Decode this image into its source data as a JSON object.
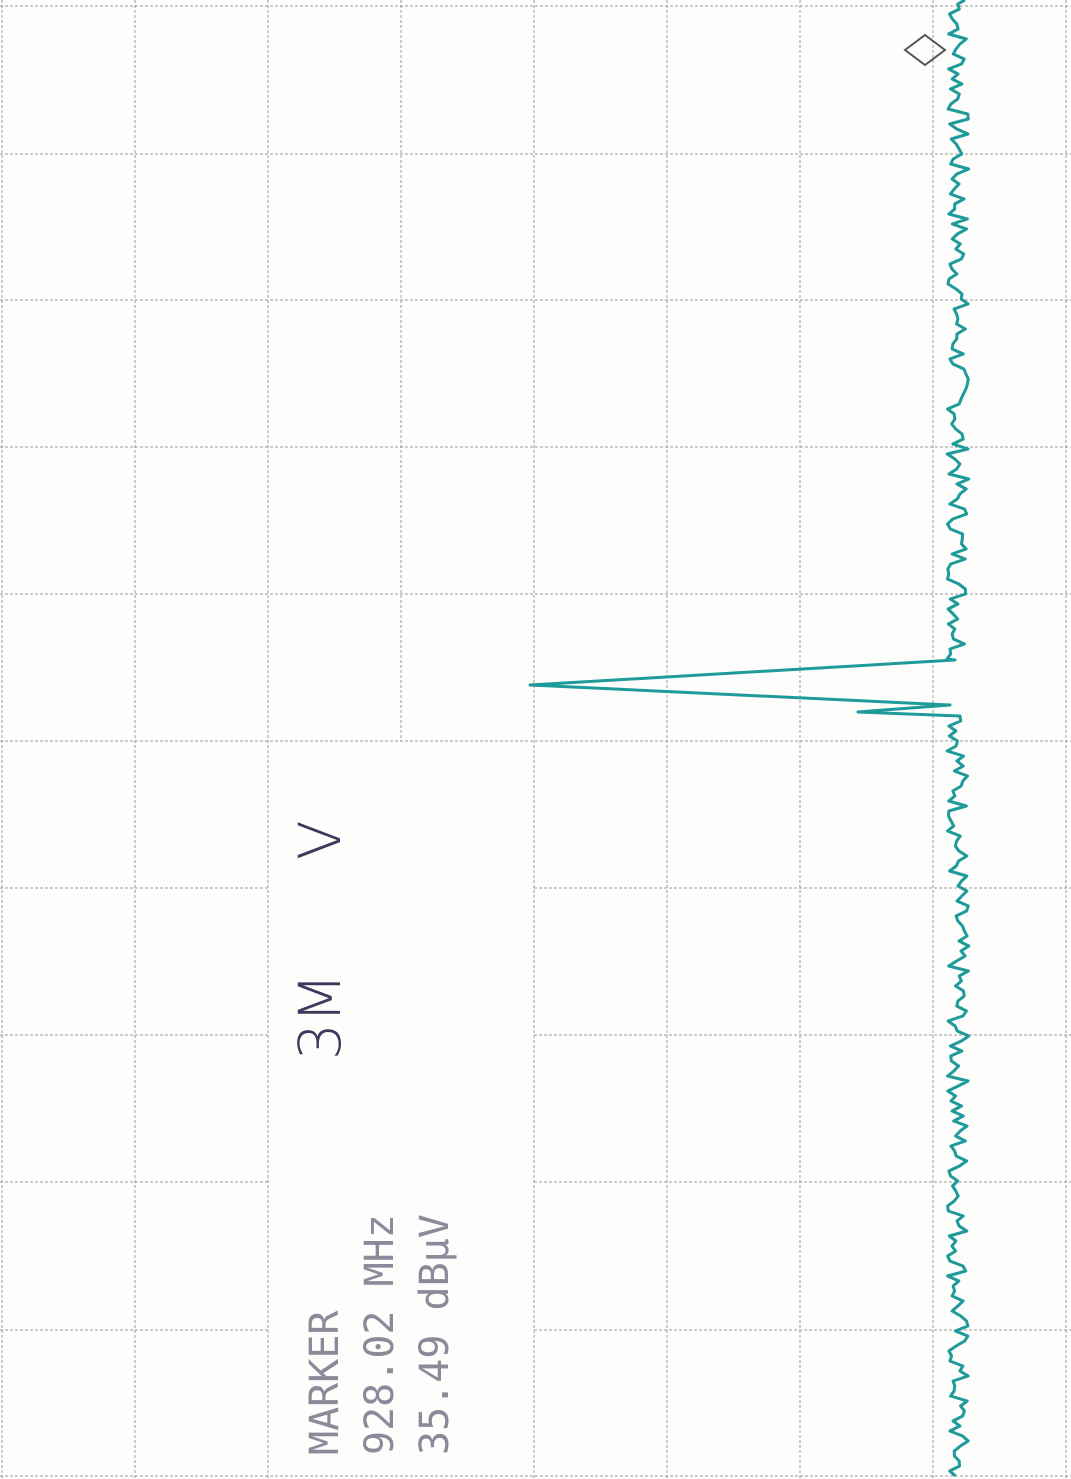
{
  "marker": {
    "label": "MARKER",
    "frequency": "928.02 MHz",
    "level": "35.49 dBµV"
  },
  "handwritten": {
    "distance": "3M",
    "polarization": "V"
  }
}
